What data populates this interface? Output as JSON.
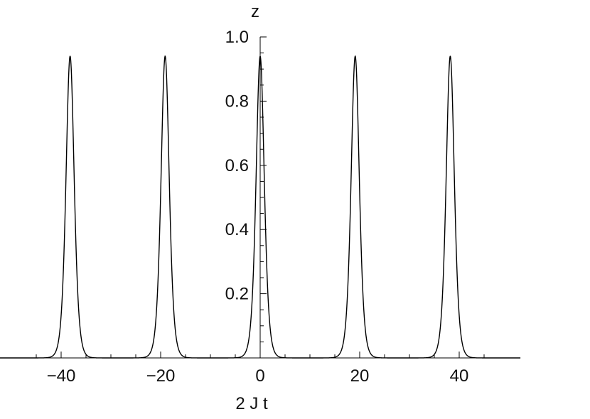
{
  "chart_data": {
    "type": "line",
    "title": "",
    "xlabel": "2 J t",
    "ylabel": "z",
    "xlim": [
      -50,
      50
    ],
    "ylim": [
      0,
      1.0
    ],
    "grid": false,
    "x_ticks": [
      {
        "value": -40,
        "label": "−40"
      },
      {
        "value": -20,
        "label": "−20"
      },
      {
        "value": 0,
        "label": "0"
      },
      {
        "value": 20,
        "label": "20"
      },
      {
        "value": 40,
        "label": "40"
      }
    ],
    "y_ticks": [
      {
        "value": 0.2,
        "label": "0.2"
      },
      {
        "value": 0.4,
        "label": "0.4"
      },
      {
        "value": 0.6,
        "label": "0.6"
      },
      {
        "value": 0.8,
        "label": "0.8"
      },
      {
        "value": 1.0,
        "label": "1.0"
      }
    ],
    "series": [
      {
        "peak_height": 0.94,
        "peak_half_width": 1.1,
        "peak_positions": [
          -38.2,
          -19.1,
          0,
          19.1,
          38.2
        ]
      }
    ]
  }
}
